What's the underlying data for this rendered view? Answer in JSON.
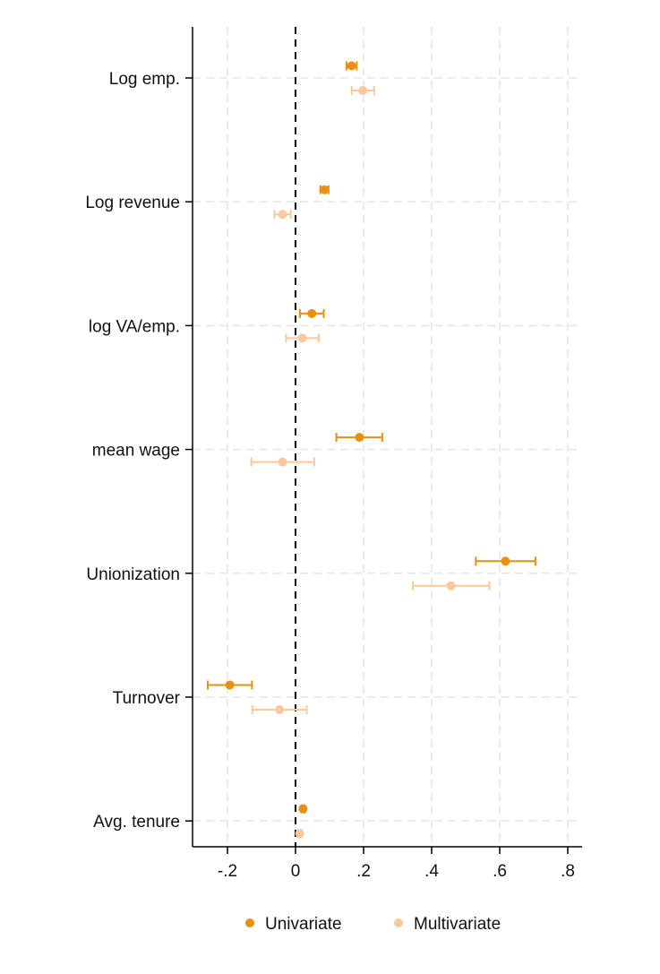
{
  "chart_data": {
    "type": "scatter",
    "orientation": "horizontal",
    "categories": [
      "Log emp.",
      "Log revenue",
      "log VA/emp.",
      "mean wage",
      "Unionization",
      "Turnover",
      "Avg. tenure"
    ],
    "x_ticks": [
      -0.2,
      0,
      0.2,
      0.4,
      0.6,
      0.8
    ],
    "x_tick_labels": [
      "-.2",
      "0",
      ".2",
      ".4",
      ".6",
      ".8"
    ],
    "xlim": [
      -0.3,
      0.83
    ],
    "reference_line": 0,
    "grid": true,
    "legend_position": "bottom",
    "series": [
      {
        "name": "Univariate",
        "color": "#e8900f",
        "points": [
          {
            "category": "Log emp.",
            "estimate": 0.165,
            "ci": [
              0.15,
              0.18
            ]
          },
          {
            "category": "Log revenue",
            "estimate": 0.085,
            "ci": [
              0.073,
              0.097
            ]
          },
          {
            "category": "log VA/emp.",
            "estimate": 0.048,
            "ci": [
              0.013,
              0.083
            ]
          },
          {
            "category": "mean wage",
            "estimate": 0.188,
            "ci": [
              0.12,
              0.255
            ]
          },
          {
            "category": "Unionization",
            "estimate": 0.617,
            "ci": [
              0.53,
              0.705
            ]
          },
          {
            "category": "Turnover",
            "estimate": -0.193,
            "ci": [
              -0.258,
              -0.128
            ]
          },
          {
            "category": "Avg. tenure",
            "estimate": 0.022,
            "ci": [
              0.017,
              0.027
            ]
          }
        ]
      },
      {
        "name": "Multivariate",
        "color": "#f9c99c",
        "points": [
          {
            "category": "Log emp.",
            "estimate": 0.198,
            "ci": [
              0.165,
              0.231
            ]
          },
          {
            "category": "Log revenue",
            "estimate": -0.038,
            "ci": [
              -0.062,
              -0.014
            ]
          },
          {
            "category": "log VA/emp.",
            "estimate": 0.02,
            "ci": [
              -0.028,
              0.068
            ]
          },
          {
            "category": "mean wage",
            "estimate": -0.038,
            "ci": [
              -0.13,
              0.055
            ]
          },
          {
            "category": "Unionization",
            "estimate": 0.457,
            "ci": [
              0.345,
              0.57
            ]
          },
          {
            "category": "Turnover",
            "estimate": -0.047,
            "ci": [
              -0.127,
              0.033
            ]
          },
          {
            "category": "Avg. tenure",
            "estimate": 0.012,
            "ci": [
              0.007,
              0.017
            ]
          }
        ]
      }
    ]
  }
}
